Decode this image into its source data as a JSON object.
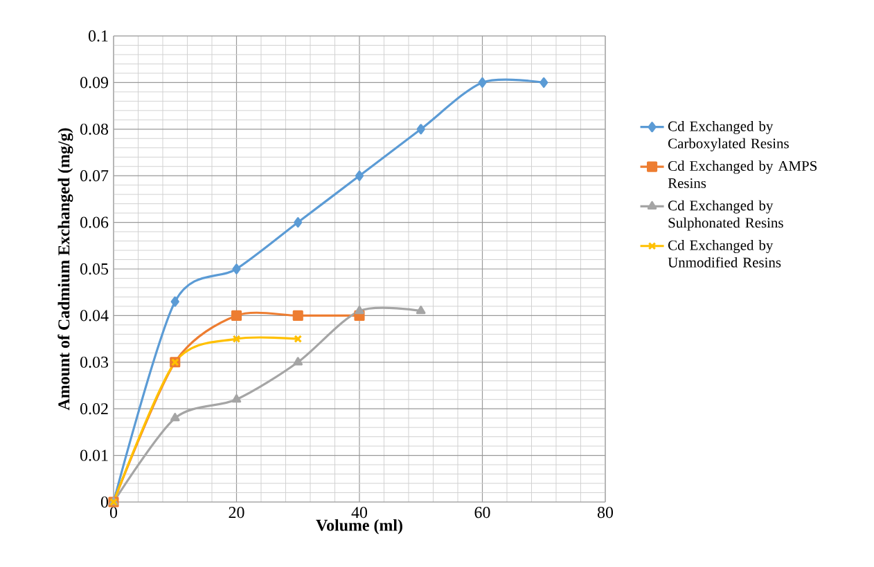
{
  "chart_data": {
    "type": "line",
    "xlabel": "Volume (ml)",
    "ylabel": "Amount of Cadmium Exchanged (mg/g)",
    "xlim": [
      0,
      80
    ],
    "xticks": [
      0,
      20,
      40,
      60,
      80
    ],
    "ylim": [
      0,
      0.1
    ],
    "yticks": [
      0,
      0.01,
      0.02,
      0.03,
      0.04,
      0.05,
      0.06,
      0.07,
      0.08,
      0.09,
      0.1
    ],
    "grid": true,
    "legend": "right",
    "series": [
      {
        "name": "Cd Exchanged by Carboxylated Resins",
        "color": "#5b9bd5",
        "marker": "diamond",
        "x": [
          0,
          10,
          20,
          30,
          40,
          50,
          60,
          70
        ],
        "values": [
          0,
          0.043,
          0.05,
          0.06,
          0.07,
          0.08,
          0.09,
          0.09
        ]
      },
      {
        "name": "Cd Exchanged by AMPS Resins",
        "color": "#ed7d31",
        "marker": "square",
        "x": [
          0,
          10,
          20,
          30,
          40
        ],
        "values": [
          0,
          0.03,
          0.04,
          0.04,
          0.04
        ]
      },
      {
        "name": "Cd Exchanged by Sulphonated Resins",
        "color": "#a5a5a5",
        "marker": "triangle",
        "x": [
          0,
          10,
          20,
          30,
          40,
          50
        ],
        "values": [
          0,
          0.018,
          0.022,
          0.03,
          0.041,
          0.041
        ]
      },
      {
        "name": "Cd Exchanged by Unmodified Resins",
        "color": "#ffc000",
        "marker": "cross",
        "x": [
          0,
          10,
          20,
          30
        ],
        "values": [
          0,
          0.03,
          0.035,
          0.035
        ]
      }
    ]
  }
}
